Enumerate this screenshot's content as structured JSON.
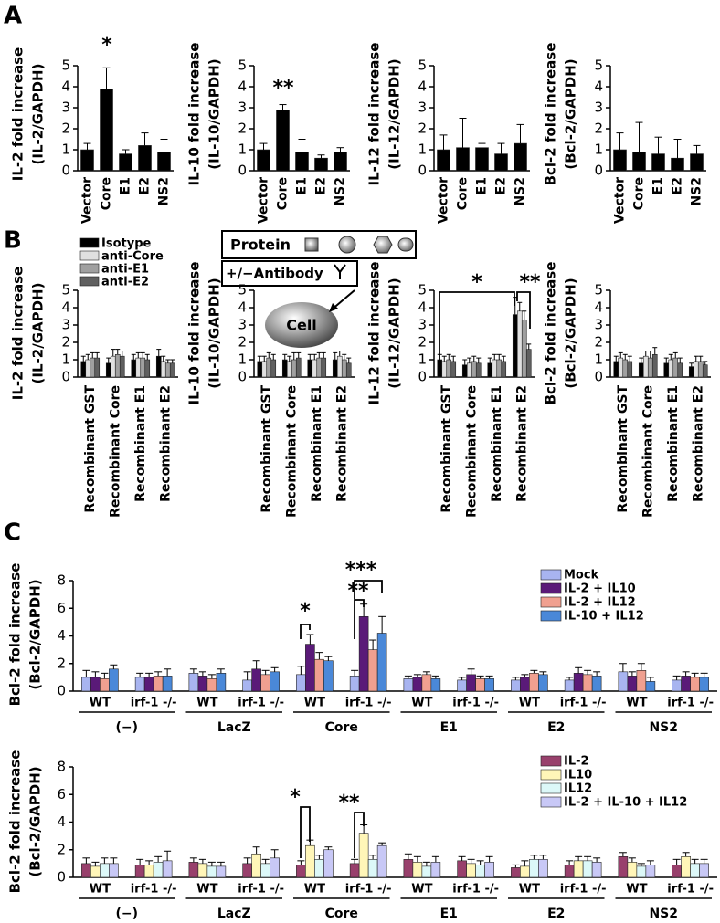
{
  "panel_labels": [
    "A",
    "B",
    "C"
  ],
  "diagram": {
    "protein": "Protein",
    "antibody": "+/−Antibody",
    "cell": "Cell"
  },
  "chart_data": [
    {
      "type": "bar",
      "y_label": [
        "IL-2 fold increase",
        "(IL-2/GAPDH)"
      ],
      "categories": [
        "Vector",
        "Core",
        "E1",
        "E2",
        "NS2"
      ],
      "series": [
        {
          "color": "#000000",
          "values": [
            1.0,
            3.9,
            0.8,
            1.2,
            0.9
          ],
          "errors": [
            0.3,
            1.0,
            0.2,
            0.6,
            0.6
          ]
        }
      ],
      "ylim": [
        0,
        5
      ],
      "yticks": [
        0,
        1,
        2,
        3,
        4,
        5
      ],
      "annotations": [
        "*"
      ]
    },
    {
      "type": "bar",
      "y_label": [
        "IL-10 fold increase",
        "(IL-10/GAPDH)"
      ],
      "categories": [
        "Vector",
        "Core",
        "E1",
        "E2",
        "NS2"
      ],
      "series": [
        {
          "color": "#000000",
          "values": [
            1.0,
            2.9,
            0.9,
            0.6,
            0.9
          ],
          "errors": [
            0.3,
            0.25,
            0.6,
            0.15,
            0.2
          ]
        }
      ],
      "ylim": [
        0,
        5
      ],
      "yticks": [
        0,
        1,
        2,
        3,
        4,
        5
      ],
      "annotations": [
        "**"
      ]
    },
    {
      "type": "bar",
      "y_label": [
        "IL-12 fold increase",
        "(IL-12/GAPDH)"
      ],
      "categories": [
        "Vector",
        "Core",
        "E1",
        "E2",
        "NS2"
      ],
      "series": [
        {
          "color": "#000000",
          "values": [
            1.0,
            1.1,
            1.1,
            0.8,
            1.3
          ],
          "errors": [
            0.7,
            1.4,
            0.2,
            0.5,
            0.9
          ]
        }
      ],
      "ylim": [
        0,
        5
      ],
      "yticks": [
        0,
        1,
        2,
        3,
        4,
        5
      ]
    },
    {
      "type": "bar",
      "y_label": [
        "Bcl-2 fold increase",
        "(Bcl-2/GAPDH)"
      ],
      "categories": [
        "Vector",
        "Core",
        "E1",
        "E2",
        "NS2"
      ],
      "series": [
        {
          "color": "#000000",
          "values": [
            1.0,
            0.9,
            0.8,
            0.6,
            0.8
          ],
          "errors": [
            0.8,
            1.4,
            0.8,
            0.9,
            0.4
          ]
        }
      ],
      "ylim": [
        0,
        5
      ],
      "yticks": [
        0,
        1,
        2,
        3,
        4,
        5
      ]
    },
    {
      "type": "bar",
      "y_label": [
        "IL-2 fold increase",
        "(IL-2/GAPDH)"
      ],
      "categories": [
        "Recombinant GST",
        "Recombinant Core",
        "Recombinant E1",
        "Recombinant E2"
      ],
      "series": [
        {
          "name": "Isotype",
          "color": "#000000",
          "values": [
            0.9,
            0.8,
            1.0,
            1.2
          ],
          "errors": [
            0.3,
            0.3,
            0.3,
            0.4
          ]
        },
        {
          "name": "anti-Core",
          "color": "#e0e0e0",
          "values": [
            1.0,
            1.2,
            1.1,
            0.9
          ],
          "errors": [
            0.3,
            0.4,
            0.3,
            0.3
          ]
        },
        {
          "name": "anti-E1",
          "color": "#a0a0a0",
          "values": [
            1.1,
            1.3,
            1.1,
            0.8
          ],
          "errors": [
            0.3,
            0.3,
            0.3,
            0.2
          ]
        },
        {
          "name": "anti-E2",
          "color": "#606060",
          "values": [
            1.1,
            1.2,
            1.0,
            0.8
          ],
          "errors": [
            0.3,
            0.3,
            0.3,
            0.2
          ]
        }
      ],
      "ylim": [
        0,
        5
      ],
      "yticks": [
        0,
        1,
        2,
        3,
        4,
        5
      ],
      "legend": "upper left"
    },
    {
      "type": "bar",
      "y_label": [
        "IL-10 fold increase",
        "(IL-10/GAPDH)"
      ],
      "categories": [
        "Recombinant GST",
        "Recombinant Core",
        "Recombinant E1",
        "Recombinant E2"
      ],
      "series": [
        {
          "color": "#000000",
          "values": [
            0.9,
            1.0,
            1.0,
            1.0
          ],
          "errors": [
            0.3,
            0.3,
            0.3,
            0.4
          ]
        },
        {
          "color": "#e0e0e0",
          "values": [
            0.9,
            0.9,
            1.0,
            1.2
          ],
          "errors": [
            0.3,
            0.3,
            0.3,
            0.3
          ]
        },
        {
          "color": "#a0a0a0",
          "values": [
            1.1,
            1.0,
            1.1,
            1.0
          ],
          "errors": [
            0.3,
            0.4,
            0.3,
            0.3
          ]
        },
        {
          "color": "#606060",
          "values": [
            1.0,
            1.1,
            1.1,
            0.8
          ],
          "errors": [
            0.3,
            0.3,
            0.3,
            0.3
          ]
        }
      ],
      "ylim": [
        0,
        5
      ],
      "yticks": [
        0,
        1,
        2,
        3,
        4,
        5
      ]
    },
    {
      "type": "bar",
      "y_label": [
        "IL-12 fold increase",
        "(IL-12/GAPDH)"
      ],
      "categories": [
        "Recombinant GST",
        "Recombinant Core",
        "Recombinant E1",
        "Recombinant E2"
      ],
      "series": [
        {
          "color": "#000000",
          "values": [
            1.0,
            0.7,
            0.8,
            3.6
          ],
          "errors": [
            0.3,
            0.3,
            0.3,
            1.0
          ]
        },
        {
          "color": "#e0e0e0",
          "values": [
            0.9,
            0.8,
            1.0,
            3.8
          ],
          "errors": [
            0.3,
            0.3,
            0.3,
            0.5
          ]
        },
        {
          "color": "#a0a0a0",
          "values": [
            1.0,
            0.9,
            1.0,
            3.3
          ],
          "errors": [
            0.3,
            0.3,
            0.3,
            0.5
          ]
        },
        {
          "color": "#606060",
          "values": [
            0.9,
            0.8,
            0.9,
            1.6
          ],
          "errors": [
            0.3,
            0.3,
            0.3,
            0.3
          ]
        }
      ],
      "ylim": [
        0,
        5
      ],
      "yticks": [
        0,
        1,
        2,
        3,
        4,
        5
      ],
      "annotations": [
        "*",
        "**"
      ]
    },
    {
      "type": "bar",
      "y_label": [
        "Bcl-2 fold increase",
        "(Bcl-2/GAPDH)"
      ],
      "categories": [
        "Recombinant GST",
        "Recombinant Core",
        "Recombinant E1",
        "Recombinant E2"
      ],
      "series": [
        {
          "color": "#000000",
          "values": [
            0.9,
            0.8,
            0.8,
            0.6
          ],
          "errors": [
            0.3,
            0.3,
            0.3,
            0.2
          ]
        },
        {
          "color": "#e0e0e0",
          "values": [
            1.1,
            1.2,
            1.0,
            0.9
          ],
          "errors": [
            0.3,
            0.3,
            0.3,
            0.3
          ]
        },
        {
          "color": "#a0a0a0",
          "values": [
            1.0,
            1.1,
            1.1,
            0.9
          ],
          "errors": [
            0.3,
            0.4,
            0.3,
            0.3
          ]
        },
        {
          "color": "#606060",
          "values": [
            0.9,
            1.3,
            0.8,
            0.7
          ],
          "errors": [
            0.3,
            0.4,
            0.3,
            0.2
          ]
        }
      ],
      "ylim": [
        0,
        5
      ],
      "yticks": [
        0,
        1,
        2,
        3,
        4,
        5
      ]
    },
    {
      "type": "bar",
      "y_label": [
        "Bcl-2 fold increase",
        "(Bcl-2/GAPDH)"
      ],
      "categories": [
        "WT",
        "irf-1 -/-",
        "WT",
        "irf-1 -/-",
        "WT",
        "irf-1 -/-",
        "WT",
        "irf-1 -/-",
        "WT",
        "irf-1 -/-",
        "WT",
        "irf-1 -/-"
      ],
      "groups": [
        "(−)",
        "LacZ",
        "Core",
        "E1",
        "E2",
        "NS2"
      ],
      "series": [
        {
          "name": "Mock",
          "color": "#a8b4f0",
          "values": [
            1.0,
            1.0,
            1.3,
            0.8,
            1.2,
            1.1,
            0.9,
            0.8,
            0.8,
            0.8,
            1.4,
            0.8
          ],
          "errors": [
            0.5,
            0.3,
            0.3,
            0.6,
            0.6,
            0.4,
            0.2,
            0.2,
            0.2,
            0.2,
            0.6,
            0.3
          ]
        },
        {
          "name": "IL-2 + IL10",
          "color": "#5a1a78",
          "values": [
            1.0,
            1.0,
            1.1,
            1.6,
            3.4,
            5.4,
            1.0,
            1.2,
            1.0,
            1.3,
            1.1,
            1.1
          ],
          "errors": [
            0.4,
            0.3,
            0.3,
            0.6,
            0.7,
            0.9,
            0.2,
            0.4,
            0.2,
            0.4,
            0.3,
            0.3
          ]
        },
        {
          "name": "IL-2 + IL12",
          "color": "#f0a090",
          "values": [
            0.9,
            1.1,
            0.9,
            1.2,
            2.3,
            3.0,
            1.2,
            0.9,
            1.3,
            1.2,
            1.5,
            1.0
          ],
          "errors": [
            0.4,
            0.3,
            0.3,
            0.3,
            0.5,
            0.7,
            0.2,
            0.2,
            0.2,
            0.3,
            0.5,
            0.3
          ]
        },
        {
          "name": "IL-10 + IL12",
          "color": "#4a88d8",
          "values": [
            1.6,
            1.1,
            1.3,
            1.4,
            2.2,
            4.2,
            0.9,
            0.9,
            1.2,
            1.1,
            0.7,
            1.0
          ],
          "errors": [
            0.3,
            0.5,
            0.3,
            0.3,
            0.3,
            1.2,
            0.2,
            0.2,
            0.2,
            0.3,
            0.3,
            0.3
          ]
        }
      ],
      "ylim": [
        0,
        8
      ],
      "yticks": [
        0,
        2,
        4,
        6,
        8
      ],
      "legend": "upper right",
      "annotations": [
        "*",
        "**",
        "***"
      ]
    },
    {
      "type": "bar",
      "y_label": [
        "Bcl-2 fold increase",
        "(Bcl-2/GAPDH)"
      ],
      "categories": [
        "WT",
        "irf-1 -/-",
        "WT",
        "irf-1 -/-",
        "WT",
        "irf-1 -/-",
        "WT",
        "irf-1 -/-",
        "WT",
        "irf-1 -/-",
        "WT",
        "irf-1 -/-"
      ],
      "groups": [
        "(−)",
        "LacZ",
        "Core",
        "E1",
        "E2",
        "NS2"
      ],
      "series": [
        {
          "name": "IL-2",
          "color": "#98406c",
          "values": [
            1.0,
            0.9,
            1.1,
            1.0,
            0.9,
            1.0,
            1.3,
            1.2,
            0.7,
            0.9,
            1.5,
            0.9
          ],
          "errors": [
            0.4,
            0.4,
            0.3,
            0.4,
            0.3,
            0.3,
            0.4,
            0.3,
            0.2,
            0.3,
            0.3,
            0.4
          ]
        },
        {
          "name": "IL10",
          "color": "#fff6b8",
          "values": [
            0.8,
            0.9,
            1.0,
            1.7,
            2.3,
            3.2,
            1.1,
            1.0,
            0.8,
            1.2,
            1.1,
            1.5
          ],
          "errors": [
            0.3,
            0.3,
            0.3,
            0.5,
            0.4,
            0.6,
            0.4,
            0.3,
            0.4,
            0.3,
            0.3,
            0.3
          ]
        },
        {
          "name": "IL12",
          "color": "#dcf8f8",
          "values": [
            1.0,
            1.1,
            0.8,
            1.0,
            1.3,
            1.3,
            0.8,
            0.9,
            1.3,
            1.2,
            0.8,
            1.0
          ],
          "errors": [
            0.4,
            0.4,
            0.3,
            0.3,
            0.3,
            0.3,
            0.3,
            0.3,
            0.3,
            0.3,
            0.2,
            0.3
          ]
        },
        {
          "name": "IL-2 + IL-10 + IL12",
          "color": "#c8c8f6",
          "values": [
            1.0,
            1.2,
            0.8,
            1.4,
            2.0,
            2.3,
            1.1,
            1.1,
            1.3,
            1.1,
            0.9,
            1.0
          ],
          "errors": [
            0.4,
            0.7,
            0.3,
            0.6,
            0.2,
            0.2,
            0.4,
            0.4,
            0.3,
            0.3,
            0.3,
            0.3
          ]
        }
      ],
      "ylim": [
        0,
        8
      ],
      "yticks": [
        0,
        2,
        4,
        6,
        8
      ],
      "legend": "upper right",
      "annotations": [
        "*",
        "**"
      ]
    }
  ]
}
